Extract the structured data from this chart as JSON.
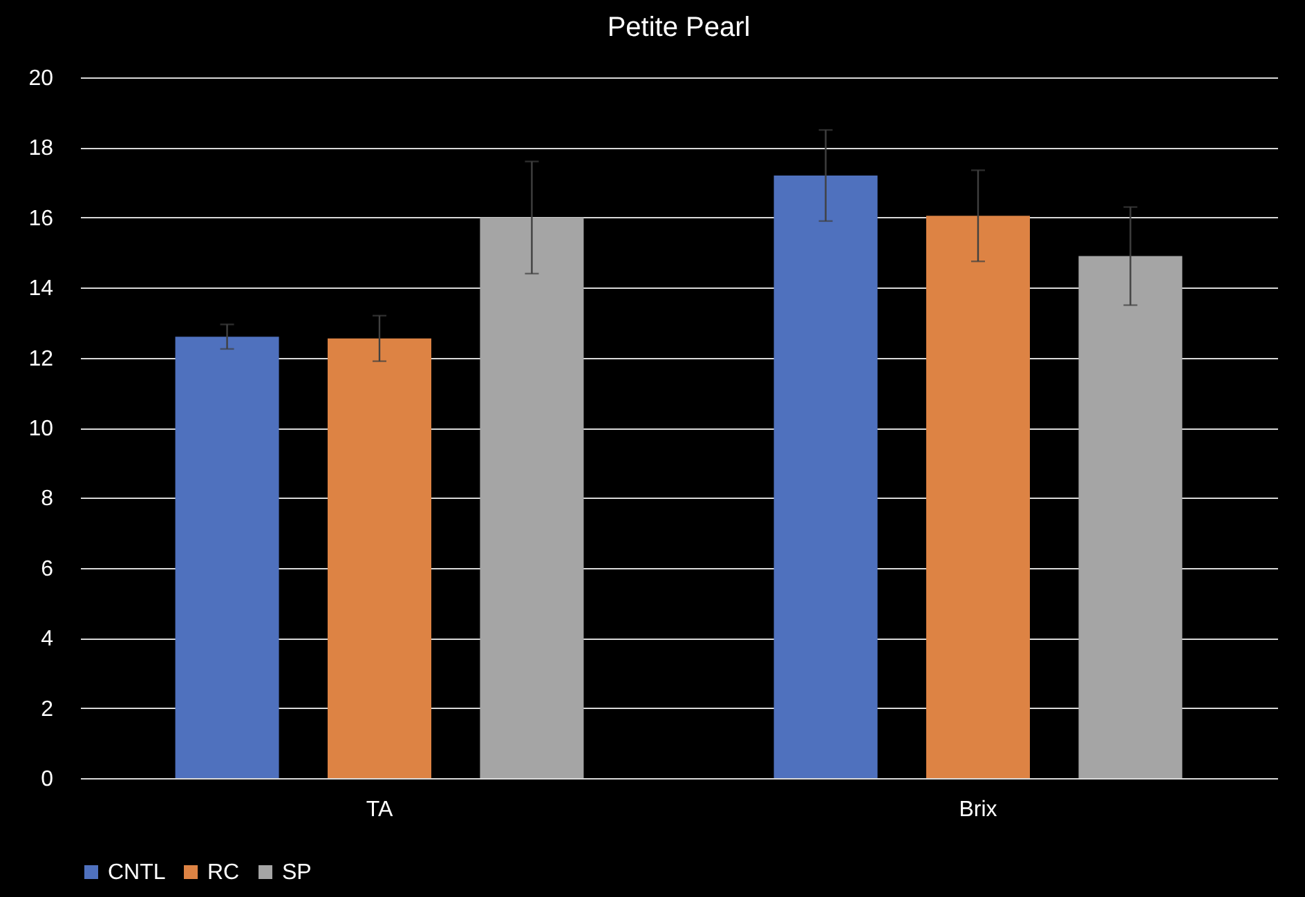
{
  "chart_data": {
    "type": "bar",
    "title": "Petite Pearl",
    "categories": [
      "TA",
      "Brix"
    ],
    "series": [
      {
        "name": "CNTL",
        "color": "#4f71be",
        "values": [
          12.6,
          17.2
        ],
        "errors": [
          0.35,
          1.3
        ]
      },
      {
        "name": "RC",
        "color": "#dd8344",
        "values": [
          12.55,
          16.05
        ],
        "errors": [
          0.65,
          1.3
        ]
      },
      {
        "name": "SP",
        "color": "#a5a5a5",
        "values": [
          16.0,
          14.9
        ],
        "errors": [
          1.6,
          1.4
        ]
      }
    ],
    "ylim": [
      0,
      20
    ],
    "yticks": [
      0,
      2,
      4,
      6,
      8,
      10,
      12,
      14,
      16,
      18,
      20
    ],
    "grid": "y",
    "legend": "bottom"
  }
}
